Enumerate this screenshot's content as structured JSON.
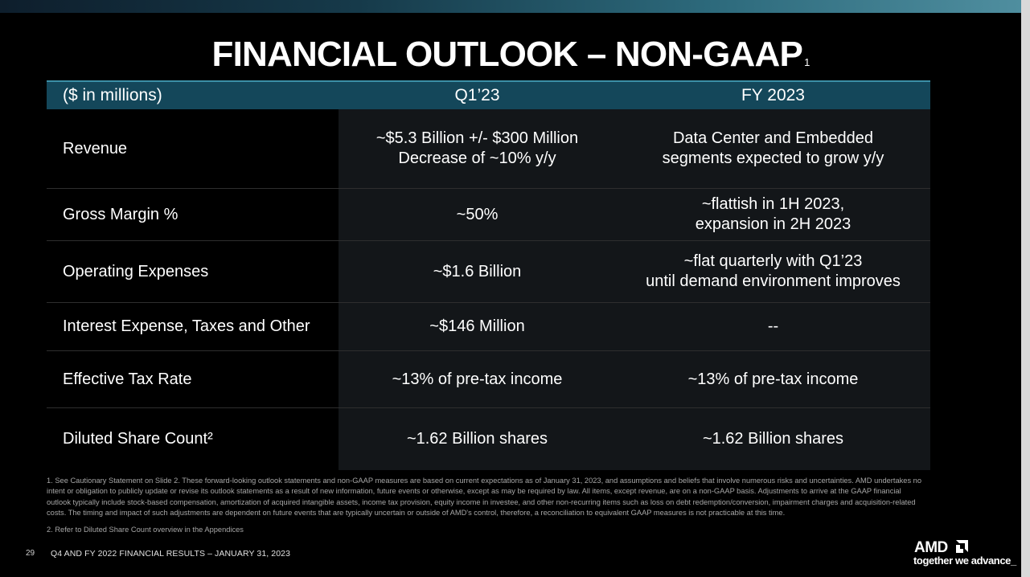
{
  "title": {
    "text": "FINANCIAL OUTLOOK – NON-GAAP",
    "footnote_marker": "1"
  },
  "table": {
    "headers": {
      "label": "($ in millions)",
      "q1": "Q1’23",
      "fy": "FY 2023"
    },
    "rows": [
      {
        "label": "Revenue",
        "q1_line1": "~$5.3 Billion +/- $300 Million",
        "q1_line2": "Decrease of ~10% y/y",
        "fy_line1": "Data Center and Embedded",
        "fy_line2": "segments expected to grow y/y"
      },
      {
        "label": "Gross Margin %",
        "q1": "~50%",
        "fy_line1": "~flattish in 1H 2023,",
        "fy_line2": "expansion in 2H 2023"
      },
      {
        "label": "Operating Expenses",
        "q1": "~$1.6 Billion",
        "fy_line1": "~flat quarterly with Q1’23",
        "fy_line2": "until demand environment improves"
      },
      {
        "label": "Interest Expense, Taxes and Other",
        "q1": "~$146 Million",
        "fy": "--"
      },
      {
        "label": "Effective Tax Rate",
        "q1": "~13% of pre-tax income",
        "fy": "~13% of pre-tax income"
      },
      {
        "label": "Diluted Share Count²",
        "q1": "~1.62 Billion shares",
        "fy": "~1.62 Billion shares"
      }
    ]
  },
  "footnotes": {
    "note1": "1.  See Cautionary Statement on Slide 2. These forward-looking outlook statements and non-GAAP measures are based on current expectations as of January 31, 2023, and assumptions and beliefs that involve numerous risks and uncertainties. AMD undertakes no intent or obligation to publicly update or revise its outlook statements as a result of new information, future events or otherwise, except as may be required by law. All items, except revenue, are on a non-GAAP basis. Adjustments to arrive at the GAAP financial outlook typically include stock-based compensation, amortization of acquired intangible assets, income tax provision, equity income in investee, and other non-recurring items such as loss on debt redemption/conversion, impairment charges and acquisition-related costs. The timing and impact of such adjustments are dependent on future events that are typically uncertain or outside of AMD's control, therefore, a reconciliation to equivalent GAAP measures is not practicable at this time.",
    "note2": "2.  Refer to Diluted Share Count overview in the Appendices"
  },
  "footer": {
    "page_number": "29",
    "text": "Q4 AND FY 2022 FINANCIAL RESULTS – JANUARY 31, 2023",
    "logo_text": "AMD",
    "tagline": "together we advance_"
  },
  "colors": {
    "header_band": "#14475a",
    "cell_bg": "#131619",
    "background": "#000000"
  }
}
